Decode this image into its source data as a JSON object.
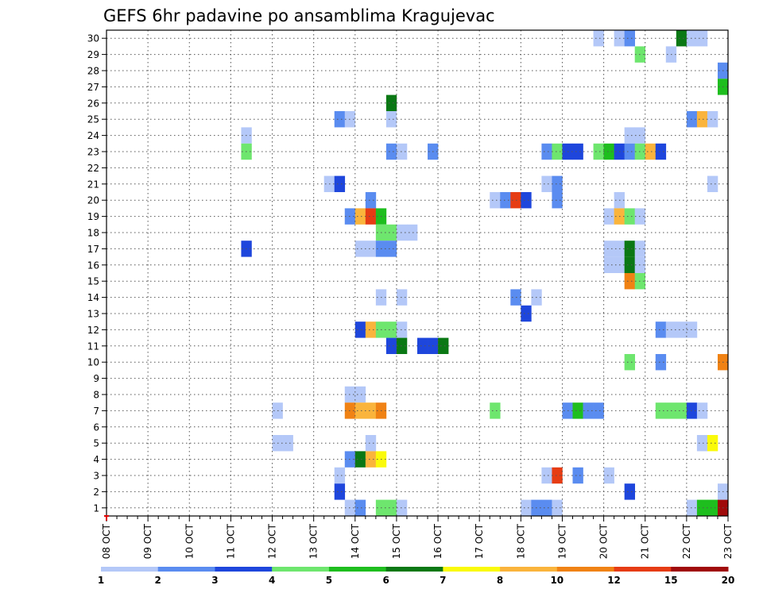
{
  "chart_data": {
    "type": "heatmap",
    "title": "GEFS 6hr padavine po ansamblima Kragujevac",
    "xlabel": "",
    "ylabel": "",
    "x_tick_labels": [
      "08 OCT",
      "09 OCT",
      "10 OCT",
      "11 OCT",
      "12 OCT",
      "13 OCT",
      "14 OCT",
      "15 OCT",
      "16 OCT",
      "17 OCT",
      "18 OCT",
      "19 OCT",
      "20 OCT",
      "21 OCT",
      "22 OCT",
      "23 OCT"
    ],
    "y_tick_labels": [
      "1",
      "2",
      "3",
      "4",
      "5",
      "6",
      "7",
      "8",
      "9",
      "10",
      "11",
      "12",
      "13",
      "14",
      "15",
      "16",
      "17",
      "18",
      "19",
      "20",
      "21",
      "22",
      "23",
      "24",
      "25",
      "26",
      "27",
      "28",
      "29",
      "30"
    ],
    "x_unit": "6-hour step from 08 OCT 00Z",
    "xlim": [
      0,
      60
    ],
    "ylim": [
      0.5,
      30.5
    ],
    "grid": true,
    "legend_position": "bottom",
    "legend": {
      "levels": [
        "1",
        "2",
        "3",
        "4",
        "5",
        "6",
        "7",
        "8",
        "10",
        "12",
        "15",
        "20"
      ],
      "colors": [
        "#b4c8f8",
        "#5a8cf0",
        "#1e46dc",
        "#6ee66e",
        "#1ebe1e",
        "#0a7814",
        "#fafa0a",
        "#fab43c",
        "#f08214",
        "#e63c14",
        "#a00a0a"
      ]
    },
    "cells": [
      {
        "member": 30,
        "x": [
          47,
          49,
          50,
          55,
          56,
          57
        ],
        "c": [
          0,
          0,
          1,
          5,
          0,
          0
        ]
      },
      {
        "member": 29,
        "x": [
          51,
          54
        ],
        "c": [
          3,
          0
        ]
      },
      {
        "member": 28,
        "x": [
          59
        ],
        "c": [
          1
        ]
      },
      {
        "member": 27,
        "x": [
          59
        ],
        "c": [
          4
        ]
      },
      {
        "member": 26,
        "x": [
          27
        ],
        "c": [
          5
        ]
      },
      {
        "member": 25,
        "x": [
          22,
          23,
          27,
          56,
          57,
          58
        ],
        "c": [
          1,
          0,
          0,
          1,
          7,
          0
        ]
      },
      {
        "member": 24,
        "x": [
          13,
          50,
          51
        ],
        "c": [
          0,
          0,
          0
        ]
      },
      {
        "member": 23,
        "x": [
          13,
          27,
          28,
          31,
          42,
          43,
          44,
          45,
          47,
          48,
          49,
          50,
          51,
          52,
          53
        ],
        "c": [
          3,
          1,
          0,
          1,
          1,
          3,
          2,
          2,
          3,
          4,
          2,
          1,
          3,
          7,
          2
        ]
      },
      {
        "member": 21,
        "x": [
          21,
          22,
          42,
          43,
          58
        ],
        "c": [
          0,
          2,
          0,
          1,
          0
        ]
      },
      {
        "member": 20,
        "x": [
          25,
          37,
          38,
          39,
          40,
          43,
          49
        ],
        "c": [
          1,
          0,
          1,
          9,
          2,
          1,
          0
        ]
      },
      {
        "member": 19,
        "x": [
          23,
          24,
          25,
          26,
          48,
          49,
          50,
          51
        ],
        "c": [
          1,
          7,
          9,
          4,
          0,
          7,
          3,
          0
        ]
      },
      {
        "member": 18,
        "x": [
          26,
          27,
          28,
          29
        ],
        "c": [
          3,
          3,
          0,
          0
        ]
      },
      {
        "member": 17,
        "x": [
          13,
          24,
          25,
          26,
          27,
          48,
          49,
          50,
          51
        ],
        "c": [
          2,
          0,
          0,
          1,
          1,
          0,
          0,
          5,
          0
        ]
      },
      {
        "member": 16,
        "x": [
          48,
          49,
          50,
          51
        ],
        "c": [
          0,
          0,
          5,
          0
        ]
      },
      {
        "member": 15,
        "x": [
          50,
          51
        ],
        "c": [
          8,
          3
        ]
      },
      {
        "member": 14,
        "x": [
          26,
          28,
          39,
          41
        ],
        "c": [
          0,
          0,
          1,
          0
        ]
      },
      {
        "member": 13,
        "x": [
          40
        ],
        "c": [
          2
        ]
      },
      {
        "member": 12,
        "x": [
          24,
          25,
          26,
          27,
          28,
          53,
          54,
          55,
          56
        ],
        "c": [
          2,
          7,
          3,
          3,
          0,
          1,
          0,
          0,
          0
        ]
      },
      {
        "member": 11,
        "x": [
          27,
          28,
          30,
          31,
          32
        ],
        "c": [
          2,
          5,
          2,
          2,
          5
        ]
      },
      {
        "member": 10,
        "x": [
          50,
          53,
          59
        ],
        "c": [
          3,
          1,
          8
        ]
      },
      {
        "member": 8,
        "x": [
          23,
          24
        ],
        "c": [
          0,
          0
        ]
      },
      {
        "member": 7,
        "x": [
          16,
          23,
          24,
          25,
          26,
          37,
          44,
          45,
          46,
          47,
          53,
          54,
          55,
          56,
          57
        ],
        "c": [
          0,
          8,
          7,
          7,
          8,
          3,
          1,
          4,
          1,
          1,
          3,
          3,
          3,
          2,
          0
        ]
      },
      {
        "member": 5,
        "x": [
          16,
          17,
          25,
          57,
          58
        ],
        "c": [
          0,
          0,
          0,
          0,
          6
        ]
      },
      {
        "member": 4,
        "x": [
          23,
          24,
          25,
          26
        ],
        "c": [
          1,
          5,
          7,
          6
        ]
      },
      {
        "member": 3,
        "x": [
          22,
          42,
          43,
          45,
          48
        ],
        "c": [
          0,
          0,
          9,
          1,
          0
        ]
      },
      {
        "member": 2,
        "x": [
          22,
          50,
          59
        ],
        "c": [
          2,
          2,
          0
        ]
      },
      {
        "member": 1,
        "x": [
          23,
          24,
          26,
          27,
          28,
          40,
          41,
          42,
          43,
          56,
          57,
          58,
          59
        ],
        "c": [
          0,
          1,
          3,
          3,
          0,
          0,
          1,
          1,
          0,
          0,
          4,
          4,
          10
        ]
      }
    ]
  }
}
